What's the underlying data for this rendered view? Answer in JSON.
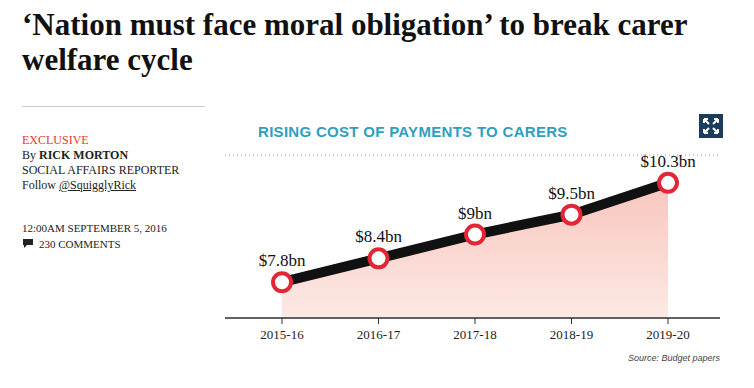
{
  "article": {
    "headline": "‘Nation must face moral obligation’ to break carer welfare cycle",
    "tag": "EXCLUSIVE",
    "byline": "By RICK MORTON",
    "role": "SOCIAL AFFAIRS REPORTER",
    "follow": "Follow @SquigglyRick",
    "date": "12:00AM SEPTEMBER 5, 2016",
    "comments": "230 COMMENTS"
  },
  "chart_data": {
    "type": "line",
    "title": "RISING COST OF PAYMENTS TO CARERS",
    "source": "Source: Budget papers",
    "categories": [
      "2015-16",
      "2016-17",
      "2017-18",
      "2018-19",
      "2019-20"
    ],
    "values": [
      7.8,
      8.4,
      9,
      9.5,
      10.3
    ],
    "value_labels": [
      "$7.8bn",
      "$8.4bn",
      "$9bn",
      "$9.5bn",
      "$10.3bn"
    ],
    "color": "#111111",
    "marker": "circle",
    "ylim": [
      6.9,
      11
    ],
    "yticks": [
      8,
      9,
      10,
      11
    ],
    "grid": true,
    "data_labels": true,
    "tick_labels": "x"
  }
}
